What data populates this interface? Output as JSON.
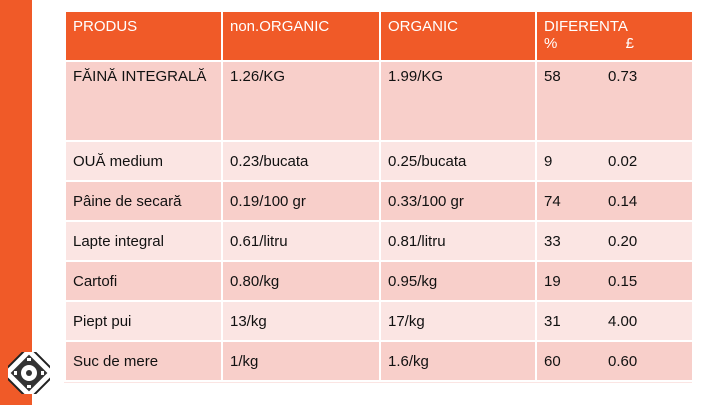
{
  "table": {
    "headers": {
      "col1": "PRODUS",
      "col2": "non.ORGANIC",
      "col3": "ORGANIC",
      "col4": "DIFERENTA",
      "col4_pct": "%",
      "col4_gbp": "£"
    },
    "rows": [
      {
        "produs": "FĂINĂ INTEGRALĂ",
        "non_organic": "1.26/KG",
        "organic": "1.99/KG",
        "pct": "58",
        "gbp": "0.73"
      },
      {
        "produs": "OUĂ medium",
        "non_organic": "0.23/bucata",
        "organic": "0.25/bucata",
        "pct": "9",
        "gbp": "0.02"
      },
      {
        "produs": "Pâine de secară",
        "non_organic": "0.19/100 gr",
        "organic": "0.33/100 gr",
        "pct": "74",
        "gbp": "0.14"
      },
      {
        "produs": "Lapte integral",
        "non_organic": "0.61/litru",
        "organic": "0.81/litru",
        "pct": "33",
        "gbp": "0.20"
      },
      {
        "produs": "Cartofi",
        "non_organic": "0.80/kg",
        "organic": "0.95/kg",
        "pct": "19",
        "gbp": "0.15"
      },
      {
        "produs": "Piept pui",
        "non_organic": "13/kg",
        "organic": "17/kg",
        "pct": "31",
        "gbp": "4.00"
      },
      {
        "produs": "Suc de mere",
        "non_organic": "1/kg",
        "organic": "1.6/kg",
        "pct": "60",
        "gbp": "0.60"
      }
    ]
  },
  "colors": {
    "accent": "#f05a28",
    "row_dark": "#f8cfca",
    "row_light": "#fbe5e3"
  },
  "logo": {
    "icon": "film-reel-logo-icon"
  }
}
